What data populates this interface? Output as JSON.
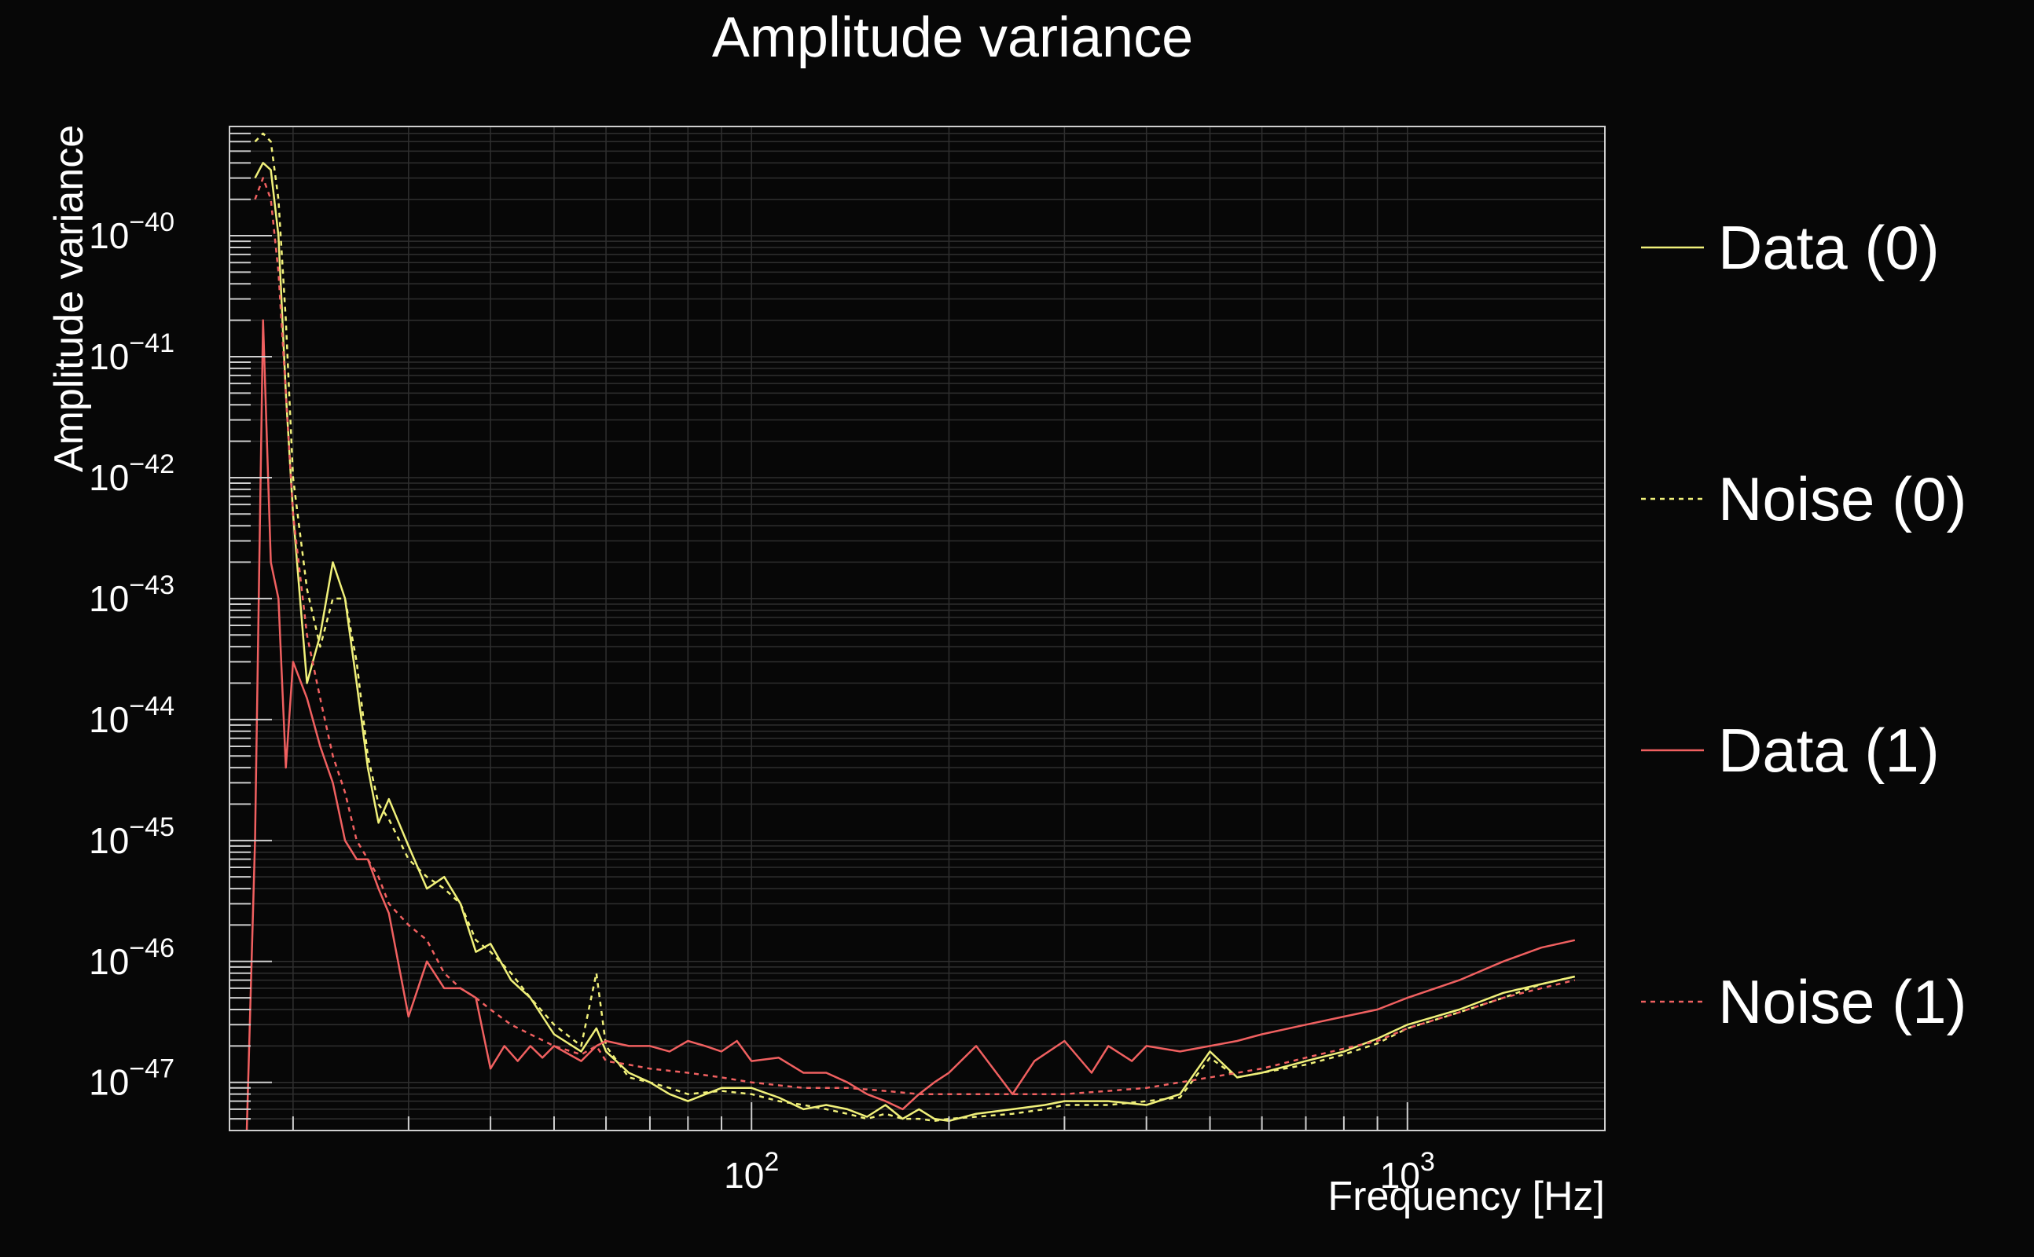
{
  "chart_data": {
    "type": "line",
    "title": "Amplitude variance",
    "xlabel": "Frequency [Hz]",
    "ylabel": "Amplitude variance",
    "x_scale": "log",
    "y_scale": "log",
    "xlim": [
      16,
      2000
    ],
    "ylim": [
      4e-48,
      8e-40
    ],
    "x_ticks": [
      {
        "value": 100,
        "base": "10",
        "exp": "2"
      },
      {
        "value": 1000,
        "base": "10",
        "exp": "3"
      }
    ],
    "y_ticks": [
      {
        "value": 1e-40,
        "base": "10",
        "exp": "−40"
      },
      {
        "value": 1e-41,
        "base": "10",
        "exp": "−41"
      },
      {
        "value": 1e-42,
        "base": "10",
        "exp": "−42"
      },
      {
        "value": 1e-43,
        "base": "10",
        "exp": "−43"
      },
      {
        "value": 1e-44,
        "base": "10",
        "exp": "−44"
      },
      {
        "value": 1e-45,
        "base": "10",
        "exp": "−45"
      },
      {
        "value": 1e-46,
        "base": "10",
        "exp": "−46"
      },
      {
        "value": 1e-47,
        "base": "10",
        "exp": "−47"
      }
    ],
    "grid": true,
    "legend_position": "right",
    "series": [
      {
        "name": "Data (0)",
        "color": "#f0f07a",
        "style": "solid",
        "x": [
          17.5,
          18,
          18.5,
          19,
          19.5,
          20,
          21,
          22,
          23,
          24,
          25,
          26,
          27,
          28,
          30,
          32,
          34,
          36,
          38,
          40,
          43,
          46,
          50,
          55,
          58,
          60,
          65,
          70,
          75,
          80,
          90,
          100,
          110,
          120,
          130,
          140,
          150,
          160,
          170,
          180,
          190,
          200,
          220,
          250,
          280,
          300,
          350,
          400,
          450,
          500,
          550,
          600,
          700,
          800,
          900,
          1000,
          1200,
          1400,
          1600,
          1800
        ],
        "y": [
          3e-40,
          4e-40,
          3.5e-40,
          1e-40,
          5e-42,
          5e-43,
          2e-44,
          5e-44,
          2e-43,
          1e-43,
          2e-44,
          4e-45,
          1.4e-45,
          2.2e-45,
          9e-46,
          4e-46,
          5e-46,
          3e-46,
          1.2e-46,
          1.4e-46,
          7e-47,
          5e-47,
          2.5e-47,
          1.8e-47,
          2.8e-47,
          1.8e-47,
          1.2e-47,
          1e-47,
          8e-48,
          7e-48,
          9e-48,
          9e-48,
          7.5e-48,
          6e-48,
          6.5e-48,
          6e-48,
          5.2e-48,
          6.5e-48,
          5e-48,
          6e-48,
          5e-48,
          4.8e-48,
          5.5e-48,
          6e-48,
          6.5e-48,
          7e-48,
          7e-48,
          6.5e-48,
          8e-48,
          1.8e-47,
          1.1e-47,
          1.2e-47,
          1.5e-47,
          1.8e-47,
          2.3e-47,
          3e-47,
          4e-47,
          5.5e-47,
          6.5e-47,
          7.5e-47
        ]
      },
      {
        "name": "Noise (0)",
        "color": "#f0f07a",
        "style": "dashed",
        "x": [
          17.5,
          18,
          18.5,
          19,
          19.5,
          20,
          21,
          22,
          23,
          24,
          25,
          26,
          27,
          28,
          30,
          32,
          34,
          36,
          38,
          40,
          43,
          46,
          50,
          55,
          58,
          60,
          65,
          70,
          75,
          80,
          90,
          100,
          110,
          120,
          130,
          140,
          150,
          160,
          170,
          180,
          190,
          200,
          220,
          250,
          280,
          300,
          350,
          400,
          450,
          500,
          550,
          600,
          700,
          800,
          900,
          1000,
          1200,
          1400,
          1600,
          1800
        ],
        "y": [
          6e-40,
          7e-40,
          6e-40,
          2e-40,
          2e-41,
          1e-42,
          1.2e-43,
          4e-44,
          1e-43,
          1e-43,
          3e-44,
          5e-45,
          2e-45,
          1.5e-45,
          7e-46,
          5e-46,
          4e-46,
          3e-46,
          1.5e-46,
          1.2e-46,
          8e-47,
          5e-47,
          3e-47,
          2e-47,
          8e-47,
          2e-47,
          1.1e-47,
          1e-47,
          9e-48,
          8e-48,
          8.5e-48,
          8e-48,
          7e-48,
          6.5e-48,
          6e-48,
          5.5e-48,
          5e-48,
          5.5e-48,
          5e-48,
          5e-48,
          4.8e-48,
          5e-48,
          5.2e-48,
          5.5e-48,
          6e-48,
          6.5e-48,
          6.5e-48,
          7e-48,
          7.5e-48,
          1.6e-47,
          1.1e-47,
          1.2e-47,
          1.4e-47,
          1.7e-47,
          2.1e-47,
          2.8e-47,
          3.8e-47,
          5e-47,
          6.5e-47,
          7.5e-47
        ]
      },
      {
        "name": "Data (1)",
        "color": "#f06060",
        "style": "solid",
        "x": [
          17,
          17.5,
          18,
          18.5,
          19,
          19.5,
          20,
          21,
          22,
          23,
          24,
          25,
          26,
          27,
          28,
          30,
          32,
          34,
          36,
          38,
          40,
          42,
          44,
          46,
          48,
          50,
          55,
          58,
          60,
          65,
          70,
          75,
          80,
          85,
          90,
          95,
          100,
          110,
          120,
          130,
          140,
          150,
          160,
          170,
          180,
          190,
          200,
          220,
          250,
          270,
          300,
          330,
          350,
          380,
          400,
          450,
          500,
          550,
          600,
          700,
          800,
          900,
          1000,
          1200,
          1400,
          1600,
          1800
        ],
        "y": [
          4e-48,
          1e-45,
          2e-41,
          2e-43,
          1e-43,
          4e-45,
          3e-44,
          1.5e-44,
          6e-45,
          3e-45,
          1e-45,
          7e-46,
          7e-46,
          4e-46,
          2.5e-46,
          3.5e-47,
          1e-46,
          6e-47,
          6e-47,
          5e-47,
          1.3e-47,
          2e-47,
          1.5e-47,
          2e-47,
          1.6e-47,
          2e-47,
          1.5e-47,
          2e-47,
          2.2e-47,
          2e-47,
          2e-47,
          1.8e-47,
          2.2e-47,
          2e-47,
          1.8e-47,
          2.2e-47,
          1.5e-47,
          1.6e-47,
          1.2e-47,
          1.2e-47,
          1e-47,
          8e-48,
          7e-48,
          6e-48,
          8e-48,
          1e-47,
          1.2e-47,
          2e-47,
          8e-48,
          1.5e-47,
          2.2e-47,
          1.2e-47,
          2e-47,
          1.5e-47,
          2e-47,
          1.8e-47,
          2e-47,
          2.2e-47,
          2.5e-47,
          3e-47,
          3.5e-47,
          4e-47,
          5e-47,
          7e-47,
          1e-46,
          1.3e-46,
          1.5e-46
        ]
      },
      {
        "name": "Noise (1)",
        "color": "#f06060",
        "style": "dashed",
        "x": [
          17.5,
          18,
          18.5,
          19,
          19.5,
          20,
          21,
          22,
          23,
          24,
          25,
          26,
          27,
          28,
          30,
          32,
          34,
          36,
          38,
          40,
          43,
          46,
          50,
          55,
          58,
          60,
          65,
          70,
          80,
          90,
          100,
          120,
          140,
          160,
          180,
          200,
          250,
          300,
          350,
          400,
          450,
          500,
          600,
          700,
          800,
          900,
          1000,
          1200,
          1400,
          1600,
          1800
        ],
        "y": [
          2e-40,
          3e-40,
          2e-40,
          5e-41,
          5e-42,
          5e-43,
          5e-44,
          1.5e-44,
          5e-45,
          2.5e-45,
          1e-45,
          7e-46,
          5e-46,
          3e-46,
          2e-46,
          1.5e-46,
          8e-47,
          6e-47,
          5e-47,
          4e-47,
          3e-47,
          2.5e-47,
          2e-47,
          1.7e-47,
          2e-47,
          1.5e-47,
          1.4e-47,
          1.3e-47,
          1.2e-47,
          1.1e-47,
          1e-47,
          9e-48,
          9e-48,
          8.5e-48,
          8e-48,
          8e-48,
          8e-48,
          8e-48,
          8.5e-48,
          9e-48,
          1e-47,
          1.1e-47,
          1.3e-47,
          1.6e-47,
          1.9e-47,
          2.2e-47,
          2.8e-47,
          3.8e-47,
          5e-47,
          6e-47,
          7e-47
        ]
      }
    ]
  }
}
